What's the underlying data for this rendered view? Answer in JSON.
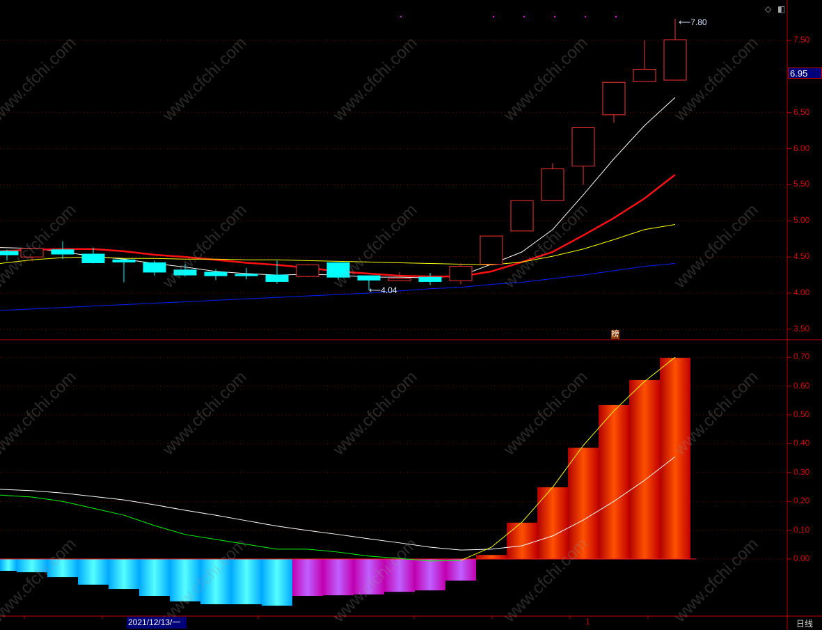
{
  "watermark_text": "www.cfchi.com",
  "current_price_tag": "6.95",
  "high_label": "7.80",
  "low_label": "4.04",
  "date_tag": "2021/12/13/一",
  "month_marker": "1",
  "period_label": "日线",
  "list_badge": "榜",
  "toolbar": {
    "diamond_icon": "◇",
    "layout_icon": "◧"
  },
  "colors": {
    "up": "#ff3030",
    "down": "#00ffff",
    "ma1": "#ffffff",
    "ma2": "#ff1010",
    "ma3": "#ffff00",
    "ma4": "#0020ff",
    "axis": "#c00000",
    "signal_marks": "#ff00ff"
  },
  "chart_data": [
    {
      "type": "candlestick",
      "ylim": [
        3.4,
        7.9
      ],
      "yticks": [
        "7.50",
        "6.50",
        "6.00",
        "5.50",
        "5.00",
        "4.50",
        "4.00",
        "3.50"
      ],
      "ytick_values": [
        7.5,
        6.5,
        6.0,
        5.5,
        5.0,
        4.5,
        4.0,
        3.5
      ],
      "candles": [
        {
          "o": 4.58,
          "h": 4.6,
          "l": 4.45,
          "c": 4.53
        },
        {
          "o": 4.5,
          "h": 4.62,
          "l": 4.44,
          "c": 4.62
        },
        {
          "o": 4.6,
          "h": 4.72,
          "l": 4.47,
          "c": 4.54
        },
        {
          "o": 4.54,
          "h": 4.63,
          "l": 4.41,
          "c": 4.42
        },
        {
          "o": 4.46,
          "h": 4.46,
          "l": 4.15,
          "c": 4.43
        },
        {
          "o": 4.42,
          "h": 4.45,
          "l": 4.24,
          "c": 4.29
        },
        {
          "o": 4.32,
          "h": 4.4,
          "l": 4.23,
          "c": 4.25
        },
        {
          "o": 4.29,
          "h": 4.33,
          "l": 4.18,
          "c": 4.24
        },
        {
          "o": 4.26,
          "h": 4.35,
          "l": 4.19,
          "c": 4.24
        },
        {
          "o": 4.25,
          "h": 4.45,
          "l": 4.13,
          "c": 4.16
        },
        {
          "o": 4.23,
          "h": 4.4,
          "l": 4.22,
          "c": 4.39
        },
        {
          "o": 4.42,
          "h": 4.42,
          "l": 4.19,
          "c": 4.22
        },
        {
          "o": 4.24,
          "h": 4.24,
          "l": 4.04,
          "c": 4.18
        },
        {
          "o": 4.17,
          "h": 4.29,
          "l": 4.17,
          "c": 4.2
        },
        {
          "o": 4.22,
          "h": 4.28,
          "l": 4.11,
          "c": 4.16
        },
        {
          "o": 4.17,
          "h": 4.41,
          "l": 4.12,
          "c": 4.37
        },
        {
          "o": 4.4,
          "h": 4.79,
          "l": 4.4,
          "c": 4.79
        },
        {
          "o": 4.86,
          "h": 5.28,
          "l": 4.86,
          "c": 5.28
        },
        {
          "o": 5.28,
          "h": 5.8,
          "l": 5.28,
          "c": 5.72
        },
        {
          "o": 5.76,
          "h": 6.29,
          "l": 5.5,
          "c": 6.29
        },
        {
          "o": 6.47,
          "h": 6.92,
          "l": 6.36,
          "c": 6.92
        },
        {
          "o": 6.93,
          "h": 7.5,
          "l": 6.93,
          "c": 7.1
        },
        {
          "o": 6.95,
          "h": 7.8,
          "l": 6.95,
          "c": 7.51
        }
      ],
      "moving_averages": [
        {
          "color": "#ffffff",
          "values": [
            4.63,
            4.62,
            4.57,
            4.51,
            4.47,
            4.41,
            4.36,
            4.3,
            4.27,
            4.25,
            4.26,
            4.25,
            4.22,
            4.22,
            4.21,
            4.24,
            4.4,
            4.57,
            4.88,
            5.36,
            5.86,
            6.32,
            6.71
          ]
        },
        {
          "color": "#ff1010",
          "values": [
            4.58,
            4.6,
            4.61,
            4.61,
            4.58,
            4.53,
            4.5,
            4.46,
            4.42,
            4.39,
            4.35,
            4.3,
            4.27,
            4.24,
            4.23,
            4.23,
            4.3,
            4.43,
            4.57,
            4.8,
            5.04,
            5.31,
            5.64
          ]
        },
        {
          "color": "#ffff00",
          "values": [
            4.41,
            4.46,
            4.49,
            4.5,
            4.48,
            4.48,
            4.47,
            4.47,
            4.46,
            4.46,
            4.45,
            4.44,
            4.43,
            4.42,
            4.41,
            4.4,
            4.39,
            4.43,
            4.51,
            4.61,
            4.74,
            4.88,
            4.95
          ]
        },
        {
          "color": "#0020ff",
          "values": [
            3.76,
            3.78,
            3.8,
            3.82,
            3.84,
            3.86,
            3.88,
            3.9,
            3.92,
            3.94,
            3.96,
            3.98,
            4.0,
            4.03,
            4.06,
            4.08,
            4.12,
            4.15,
            4.2,
            4.25,
            4.31,
            4.37,
            4.41
          ]
        }
      ]
    },
    {
      "type": "bar+line",
      "ylim": [
        -0.2,
        0.75
      ],
      "yticks": [
        "0.70",
        "0.60",
        "0.50",
        "0.40",
        "0.30",
        "0.20",
        "0.10",
        "0.00"
      ],
      "ytick_values": [
        0.7,
        0.6,
        0.5,
        0.4,
        0.3,
        0.2,
        0.1,
        0.0
      ],
      "histogram": [
        -0.041,
        -0.046,
        -0.063,
        -0.089,
        -0.104,
        -0.128,
        -0.147,
        -0.157,
        -0.157,
        -0.162,
        -0.128,
        -0.126,
        -0.123,
        -0.114,
        -0.109,
        -0.075,
        0.014,
        0.126,
        0.249,
        0.386,
        0.534,
        0.621,
        0.698
      ],
      "fast_line": [
        0.222,
        0.215,
        0.2,
        0.176,
        0.152,
        0.116,
        0.085,
        0.068,
        0.051,
        0.034,
        0.034,
        0.024,
        0.01,
        0.002,
        -0.007,
        -0.005,
        0.041,
        0.128,
        0.249,
        0.394,
        0.514,
        0.616,
        0.7
      ],
      "slow_line": [
        0.242,
        0.237,
        0.229,
        0.217,
        0.205,
        0.188,
        0.169,
        0.152,
        0.133,
        0.114,
        0.099,
        0.085,
        0.07,
        0.056,
        0.041,
        0.031,
        0.034,
        0.046,
        0.08,
        0.135,
        0.2,
        0.273,
        0.355
      ]
    }
  ]
}
